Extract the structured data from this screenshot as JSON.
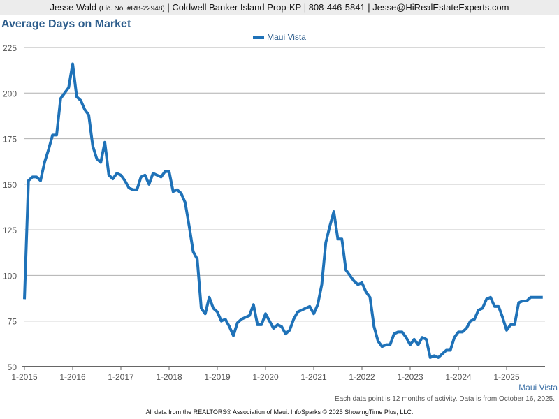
{
  "header": {
    "name": "Jesse Wald",
    "license": "(Lic. No. #RB-22948)",
    "rest": "| Coldwell Banker Island Prop-KP | 808-446-5841 | Jesse@HiRealEstateExperts.com"
  },
  "chart_data": {
    "type": "line",
    "title": "Average Days on Market",
    "xlabel": "",
    "ylabel": "",
    "ylim": [
      50,
      225
    ],
    "yticks": [
      50,
      75,
      100,
      125,
      150,
      175,
      200,
      225
    ],
    "xticks": [
      "1-2015",
      "1-2016",
      "1-2017",
      "1-2018",
      "1-2019",
      "1-2020",
      "1-2021",
      "1-2022",
      "1-2023",
      "1-2024",
      "1-2025"
    ],
    "x_start": "1-2015",
    "x_interval": "month",
    "grid": true,
    "legend": "top-center",
    "series": [
      {
        "name": "Maui Vista",
        "color": "#1f72b8",
        "values": [
          87,
          152,
          154,
          154,
          152,
          162,
          169,
          177,
          177,
          197,
          200,
          203,
          216,
          198,
          196,
          191,
          188,
          171,
          164,
          162,
          173,
          155,
          153,
          156,
          155,
          152,
          148,
          147,
          147,
          154,
          155,
          150,
          156,
          155,
          154,
          157,
          157,
          146,
          147,
          145,
          140,
          127,
          113,
          109,
          82,
          79,
          88,
          82,
          80,
          75,
          76,
          72,
          67,
          74,
          76,
          77,
          78,
          84,
          73,
          73,
          79,
          75,
          71,
          73,
          72,
          68,
          70,
          76,
          80,
          81,
          82,
          83,
          79,
          84,
          95,
          118,
          127,
          135,
          120,
          120,
          103,
          100,
          97,
          95,
          96,
          91,
          88,
          72,
          64,
          61,
          62,
          62,
          68,
          69,
          69,
          66,
          62,
          65,
          62,
          66,
          65,
          55,
          56,
          55,
          57,
          59,
          59,
          66,
          69,
          69,
          71,
          75,
          76,
          81,
          82,
          87,
          88,
          83,
          83,
          77,
          70,
          73,
          73,
          85,
          86,
          86,
          88,
          88,
          88,
          88
        ]
      }
    ]
  },
  "series_label": "Maui Vista",
  "note": "Each data point is 12 months of activity. Data is from October 16, 2025.",
  "footer": "All data from the REALTORS® Association of Maui. InfoSparks © 2025 ShowingTime Plus, LLC."
}
